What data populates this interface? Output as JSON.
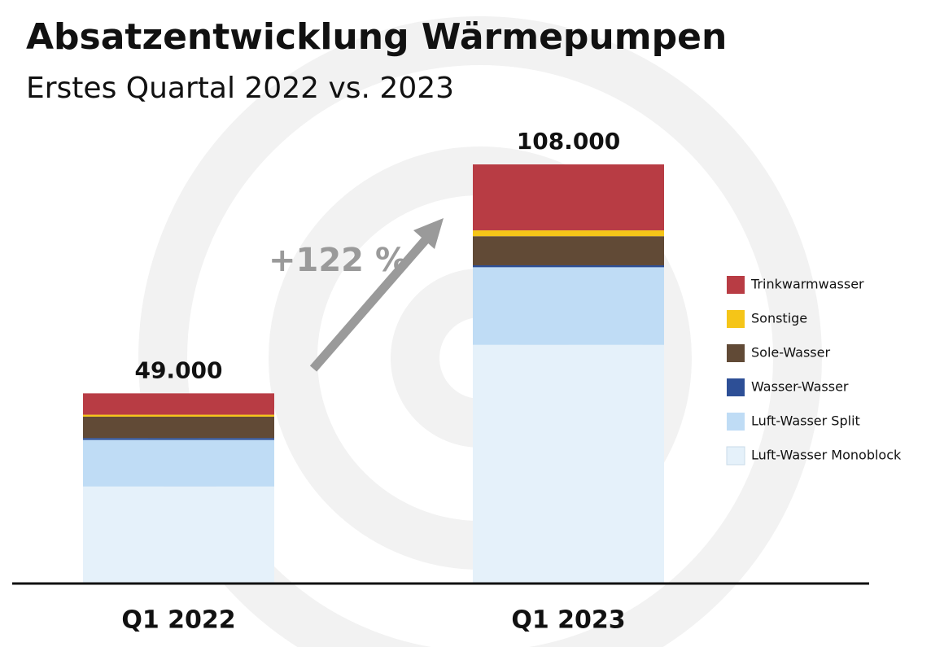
{
  "chart_data": {
    "type": "stacked_bar",
    "title": "Absatzentwicklung Wärmepumpen",
    "subtitle": "Erstes Quartal 2022 vs. 2023",
    "categories": [
      "Q1 2022",
      "Q1 2023"
    ],
    "series": [
      {
        "name": "Luft-Wasser Monoblock",
        "color": "#e5f1fa",
        "values": [
          25000,
          61500
        ]
      },
      {
        "name": "Luft-Wasser Split",
        "color": "#bfdcf5",
        "values": [
          12000,
          20000
        ]
      },
      {
        "name": "Wasser-Wasser",
        "color": "#2d4f96",
        "values": [
          500,
          500
        ]
      },
      {
        "name": "Sole-Wasser",
        "color": "#614a36",
        "values": [
          5500,
          7500
        ]
      },
      {
        "name": "Sonstige",
        "color": "#f5c518",
        "values": [
          500,
          1500
        ]
      },
      {
        "name": "Trinkwarmwasser",
        "color": "#b83c44",
        "values": [
          5500,
          17000
        ]
      }
    ],
    "totals": {
      "values": [
        49000,
        108000
      ],
      "value_labels": [
        "49.000",
        "108.000"
      ]
    },
    "annotation": "+122 %",
    "legend": "right"
  }
}
